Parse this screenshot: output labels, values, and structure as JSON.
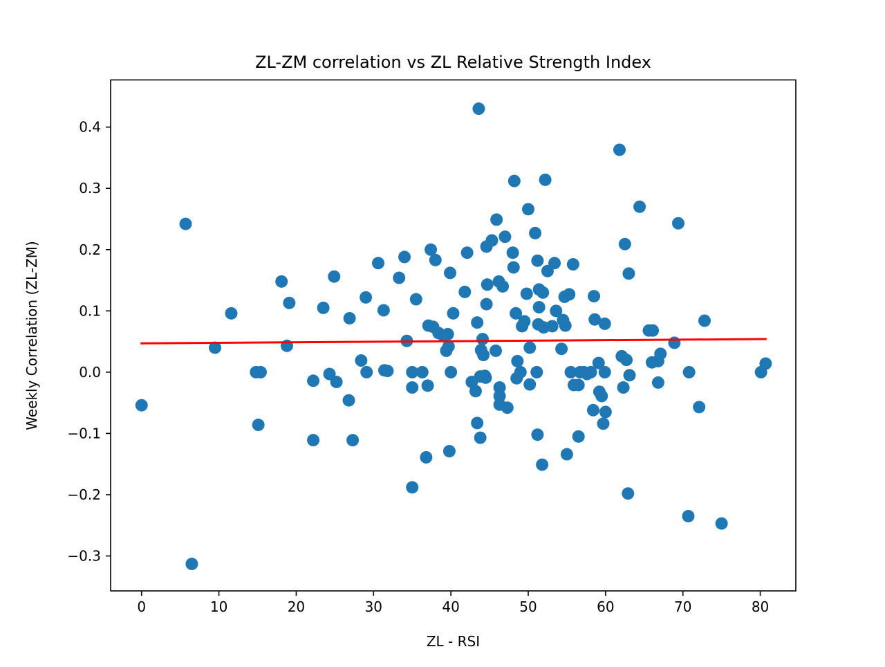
{
  "chart_data": {
    "type": "scatter",
    "title": "ZL-ZM correlation vs ZL Relative Strength Index",
    "xlabel": "ZL - RSI",
    "ylabel": "Weekly Correlation (ZL-ZM)",
    "xlim": [
      -4.0,
      84.6
    ],
    "ylim": [
      -0.357,
      0.477
    ],
    "x_ticks": [
      {
        "value": 0,
        "label": "0"
      },
      {
        "value": 10,
        "label": "10"
      },
      {
        "value": 20,
        "label": "20"
      },
      {
        "value": 30,
        "label": "30"
      },
      {
        "value": 40,
        "label": "40"
      },
      {
        "value": 50,
        "label": "50"
      },
      {
        "value": 60,
        "label": "60"
      },
      {
        "value": 70,
        "label": "70"
      },
      {
        "value": 80,
        "label": "80"
      }
    ],
    "y_ticks": [
      {
        "value": -0.3,
        "label": "−0.3"
      },
      {
        "value": -0.2,
        "label": "−0.2"
      },
      {
        "value": -0.1,
        "label": "−0.1"
      },
      {
        "value": 0.0,
        "label": "0.0"
      },
      {
        "value": 0.1,
        "label": "0.1"
      },
      {
        "value": 0.2,
        "label": "0.2"
      },
      {
        "value": 0.3,
        "label": "0.3"
      },
      {
        "value": 0.4,
        "label": "0.4"
      }
    ],
    "grid": false,
    "colors": {
      "points": "#1f77b4",
      "trendline": "#ff0000"
    },
    "trendline": {
      "x": [
        0.0,
        80.7
      ],
      "y": [
        0.047,
        0.054
      ]
    },
    "points": [
      {
        "x": 0.0,
        "y": -0.054
      },
      {
        "x": 5.7,
        "y": 0.242
      },
      {
        "x": 6.5,
        "y": -0.313
      },
      {
        "x": 9.5,
        "y": 0.04
      },
      {
        "x": 11.6,
        "y": 0.096
      },
      {
        "x": 14.8,
        "y": 0.0
      },
      {
        "x": 15.1,
        "y": -0.086
      },
      {
        "x": 15.4,
        "y": 0.0
      },
      {
        "x": 18.1,
        "y": 0.148
      },
      {
        "x": 18.8,
        "y": 0.043
      },
      {
        "x": 19.1,
        "y": 0.113
      },
      {
        "x": 22.2,
        "y": -0.014
      },
      {
        "x": 22.2,
        "y": -0.111
      },
      {
        "x": 23.5,
        "y": 0.105
      },
      {
        "x": 24.3,
        "y": -0.003
      },
      {
        "x": 24.9,
        "y": 0.156
      },
      {
        "x": 25.2,
        "y": -0.016
      },
      {
        "x": 26.8,
        "y": -0.046
      },
      {
        "x": 26.9,
        "y": 0.088
      },
      {
        "x": 27.3,
        "y": -0.111
      },
      {
        "x": 28.4,
        "y": 0.019
      },
      {
        "x": 29.0,
        "y": 0.122
      },
      {
        "x": 29.1,
        "y": 0.0
      },
      {
        "x": 30.6,
        "y": 0.178
      },
      {
        "x": 31.3,
        "y": 0.101
      },
      {
        "x": 31.4,
        "y": 0.003
      },
      {
        "x": 31.8,
        "y": 0.002
      },
      {
        "x": 33.3,
        "y": 0.154
      },
      {
        "x": 34.0,
        "y": 0.188
      },
      {
        "x": 34.3,
        "y": 0.051
      },
      {
        "x": 35.0,
        "y": 0.0
      },
      {
        "x": 35.0,
        "y": -0.025
      },
      {
        "x": 35.0,
        "y": -0.188
      },
      {
        "x": 35.5,
        "y": 0.119
      },
      {
        "x": 36.3,
        "y": 0.0
      },
      {
        "x": 36.8,
        "y": -0.139
      },
      {
        "x": 37.0,
        "y": -0.022
      },
      {
        "x": 37.1,
        "y": 0.076
      },
      {
        "x": 37.4,
        "y": 0.2
      },
      {
        "x": 37.7,
        "y": 0.074
      },
      {
        "x": 38.0,
        "y": 0.183
      },
      {
        "x": 38.4,
        "y": 0.064
      },
      {
        "x": 39.0,
        "y": 0.06
      },
      {
        "x": 39.4,
        "y": 0.035
      },
      {
        "x": 39.6,
        "y": 0.062
      },
      {
        "x": 39.7,
        "y": 0.042
      },
      {
        "x": 39.8,
        "y": -0.129
      },
      {
        "x": 39.9,
        "y": 0.162
      },
      {
        "x": 40.0,
        "y": 0.0
      },
      {
        "x": 40.3,
        "y": 0.096
      },
      {
        "x": 41.8,
        "y": 0.131
      },
      {
        "x": 42.1,
        "y": 0.195
      },
      {
        "x": 42.7,
        "y": -0.016
      },
      {
        "x": 43.2,
        "y": -0.031
      },
      {
        "x": 43.4,
        "y": 0.081
      },
      {
        "x": 43.4,
        "y": -0.083
      },
      {
        "x": 43.6,
        "y": 0.43
      },
      {
        "x": 43.8,
        "y": -0.107
      },
      {
        "x": 43.8,
        "y": -0.007
      },
      {
        "x": 43.9,
        "y": 0.036
      },
      {
        "x": 44.1,
        "y": 0.054
      },
      {
        "x": 44.2,
        "y": 0.028
      },
      {
        "x": 44.4,
        "y": -0.006
      },
      {
        "x": 44.5,
        "y": -0.009
      },
      {
        "x": 44.6,
        "y": 0.205
      },
      {
        "x": 44.6,
        "y": 0.111
      },
      {
        "x": 44.7,
        "y": 0.143
      },
      {
        "x": 45.3,
        "y": 0.215
      },
      {
        "x": 45.8,
        "y": 0.035
      },
      {
        "x": 45.9,
        "y": 0.249
      },
      {
        "x": 46.2,
        "y": 0.148
      },
      {
        "x": 46.3,
        "y": -0.025
      },
      {
        "x": 46.3,
        "y": -0.039
      },
      {
        "x": 46.3,
        "y": -0.053
      },
      {
        "x": 46.7,
        "y": 0.14
      },
      {
        "x": 47.0,
        "y": 0.221
      },
      {
        "x": 47.3,
        "y": -0.058
      },
      {
        "x": 48.0,
        "y": 0.195
      },
      {
        "x": 48.1,
        "y": 0.171
      },
      {
        "x": 48.2,
        "y": 0.312
      },
      {
        "x": 48.4,
        "y": 0.096
      },
      {
        "x": 48.5,
        "y": -0.01
      },
      {
        "x": 48.6,
        "y": 0.018
      },
      {
        "x": 49.0,
        "y": 0.0
      },
      {
        "x": 49.2,
        "y": 0.075
      },
      {
        "x": 49.5,
        "y": 0.083
      },
      {
        "x": 49.8,
        "y": 0.128
      },
      {
        "x": 50.0,
        "y": 0.266
      },
      {
        "x": 50.2,
        "y": -0.02
      },
      {
        "x": 50.2,
        "y": 0.04
      },
      {
        "x": 50.9,
        "y": 0.227
      },
      {
        "x": 51.1,
        "y": 0.0
      },
      {
        "x": 51.2,
        "y": -0.102
      },
      {
        "x": 51.2,
        "y": 0.182
      },
      {
        "x": 51.3,
        "y": 0.078
      },
      {
        "x": 51.4,
        "y": 0.135
      },
      {
        "x": 51.4,
        "y": 0.106
      },
      {
        "x": 51.8,
        "y": -0.151
      },
      {
        "x": 51.9,
        "y": 0.13
      },
      {
        "x": 52.0,
        "y": 0.073
      },
      {
        "x": 52.2,
        "y": 0.314
      },
      {
        "x": 52.5,
        "y": 0.165
      },
      {
        "x": 53.1,
        "y": 0.075
      },
      {
        "x": 53.4,
        "y": 0.178
      },
      {
        "x": 53.6,
        "y": 0.1
      },
      {
        "x": 54.3,
        "y": 0.038
      },
      {
        "x": 54.5,
        "y": 0.085
      },
      {
        "x": 54.7,
        "y": 0.123
      },
      {
        "x": 54.8,
        "y": 0.076
      },
      {
        "x": 55.0,
        "y": -0.134
      },
      {
        "x": 55.3,
        "y": 0.127
      },
      {
        "x": 55.5,
        "y": 0.0
      },
      {
        "x": 55.8,
        "y": 0.176
      },
      {
        "x": 55.9,
        "y": -0.021
      },
      {
        "x": 56.5,
        "y": -0.105
      },
      {
        "x": 56.5,
        "y": -0.021
      },
      {
        "x": 56.7,
        "y": 0.0
      },
      {
        "x": 57.2,
        "y": 0.0
      },
      {
        "x": 57.6,
        "y": -0.003
      },
      {
        "x": 58.1,
        "y": 0.0
      },
      {
        "x": 58.4,
        "y": -0.062
      },
      {
        "x": 58.5,
        "y": 0.124
      },
      {
        "x": 58.6,
        "y": 0.086
      },
      {
        "x": 59.1,
        "y": 0.015
      },
      {
        "x": 59.2,
        "y": -0.032
      },
      {
        "x": 59.5,
        "y": -0.039
      },
      {
        "x": 59.7,
        "y": -0.084
      },
      {
        "x": 59.9,
        "y": 0.079
      },
      {
        "x": 59.9,
        "y": 0.0
      },
      {
        "x": 60.0,
        "y": -0.065
      },
      {
        "x": 61.8,
        "y": 0.363
      },
      {
        "x": 62.1,
        "y": 0.026
      },
      {
        "x": 62.3,
        "y": -0.025
      },
      {
        "x": 62.5,
        "y": 0.209
      },
      {
        "x": 62.7,
        "y": 0.02
      },
      {
        "x": 62.9,
        "y": -0.198
      },
      {
        "x": 63.0,
        "y": 0.161
      },
      {
        "x": 63.1,
        "y": -0.005
      },
      {
        "x": 64.4,
        "y": 0.27
      },
      {
        "x": 65.6,
        "y": 0.068
      },
      {
        "x": 66.0,
        "y": 0.016
      },
      {
        "x": 66.1,
        "y": 0.068
      },
      {
        "x": 66.8,
        "y": -0.017
      },
      {
        "x": 66.8,
        "y": 0.018
      },
      {
        "x": 67.1,
        "y": 0.03
      },
      {
        "x": 68.9,
        "y": 0.048
      },
      {
        "x": 69.4,
        "y": 0.243
      },
      {
        "x": 70.7,
        "y": -0.235
      },
      {
        "x": 70.8,
        "y": 0.0
      },
      {
        "x": 72.1,
        "y": -0.057
      },
      {
        "x": 72.8,
        "y": 0.084
      },
      {
        "x": 75.0,
        "y": -0.247
      },
      {
        "x": 80.1,
        "y": 0.0
      },
      {
        "x": 80.7,
        "y": 0.014
      }
    ]
  }
}
